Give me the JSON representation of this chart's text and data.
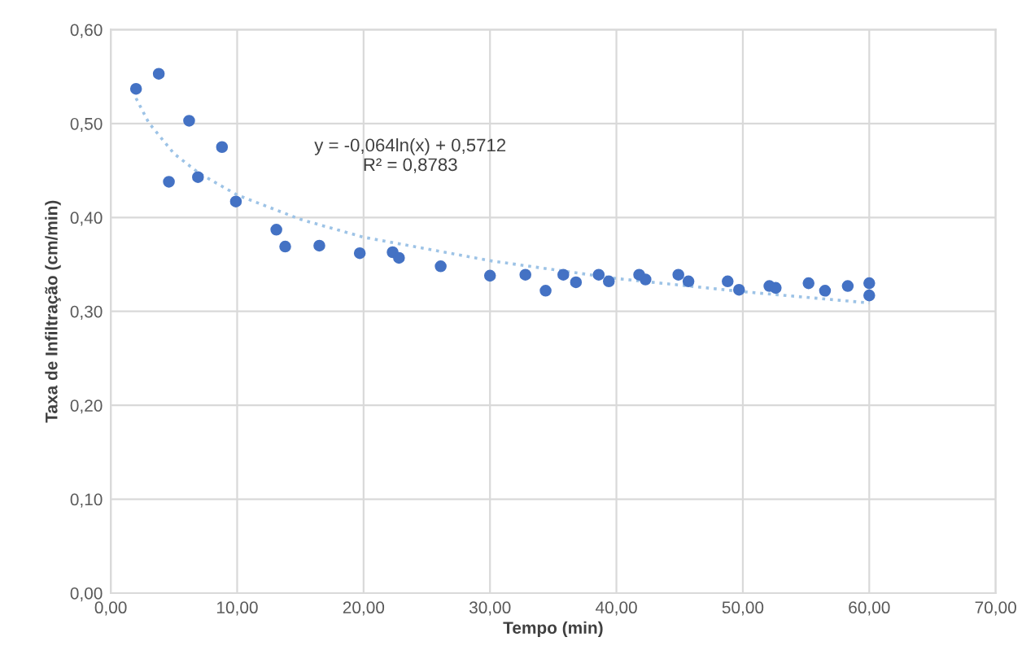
{
  "chart_data": {
    "type": "scatter",
    "xlabel": "Tempo (min)",
    "ylabel": "Taxa de Infiltração (cm/min)",
    "series": [
      {
        "type": "line",
        "color": "#9dc3e6",
        "line_style": "dotted",
        "marker": "none",
        "x": [
          2,
          3,
          5,
          7,
          10,
          15,
          20,
          30,
          40,
          50,
          60
        ],
        "values": [
          0.527,
          0.501,
          0.468,
          0.447,
          0.424,
          0.398,
          0.379,
          0.354,
          0.335,
          0.321,
          0.309
        ]
      },
      {
        "color": "#4472c4",
        "marker": "circle",
        "x": [
          2.0,
          3.8,
          4.6,
          6.2,
          6.9,
          8.8,
          9.9,
          13.1,
          13.8,
          16.5,
          19.7,
          22.3,
          22.8,
          26.1,
          30.0,
          32.8,
          34.4,
          35.8,
          36.8,
          38.6,
          39.4,
          41.8,
          42.3,
          44.9,
          45.7,
          48.8,
          49.7,
          52.1,
          52.6,
          55.2,
          56.5,
          58.3,
          60.0,
          60.0
        ],
        "values": [
          0.537,
          0.553,
          0.438,
          0.503,
          0.443,
          0.475,
          0.417,
          0.387,
          0.369,
          0.37,
          0.362,
          0.363,
          0.357,
          0.348,
          0.338,
          0.339,
          0.322,
          0.339,
          0.331,
          0.339,
          0.332,
          0.339,
          0.334,
          0.339,
          0.332,
          0.332,
          0.323,
          0.327,
          0.325,
          0.33,
          0.322,
          0.327,
          0.33,
          0.317
        ]
      }
    ],
    "xlim": [
      0,
      70
    ],
    "ylim": [
      0,
      0.6
    ],
    "xticks": [
      {
        "value": 0,
        "label": "0,00"
      },
      {
        "value": 10,
        "label": "10,00"
      },
      {
        "value": 20,
        "label": "20,00"
      },
      {
        "value": 30,
        "label": "30,00"
      },
      {
        "value": 40,
        "label": "40,00"
      },
      {
        "value": 50,
        "label": "50,00"
      },
      {
        "value": 60,
        "label": "60,00"
      },
      {
        "value": 70,
        "label": "70,00"
      }
    ],
    "yticks": [
      {
        "value": 0,
        "label": "0,00"
      },
      {
        "value": 0.1,
        "label": "0,10"
      },
      {
        "value": 0.2,
        "label": "0,20"
      },
      {
        "value": 0.3,
        "label": "0,30"
      },
      {
        "value": 0.4,
        "label": "0,40"
      },
      {
        "value": 0.5,
        "label": "0,50"
      },
      {
        "value": 0.6,
        "label": "0,60"
      }
    ],
    "grid": true,
    "legend": false,
    "annotations": [
      "y = -0,064ln(x) + 0,5712\nR² = 0,8783"
    ]
  }
}
